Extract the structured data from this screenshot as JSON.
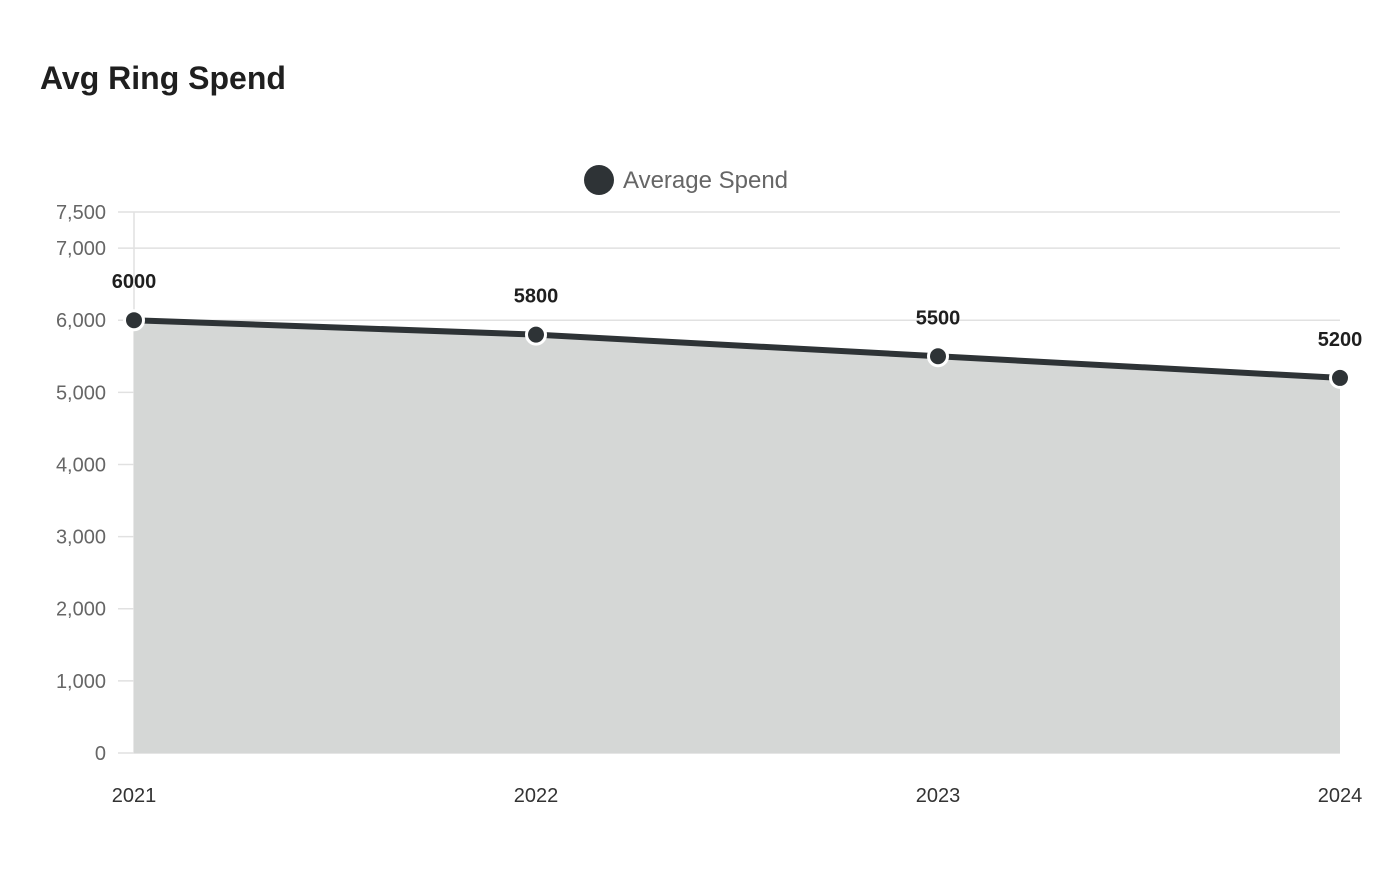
{
  "title": "Avg Ring Spend",
  "colors": {
    "series": "#2e3336",
    "fill": "#d5d7d6",
    "grid": "#e1e1e1",
    "marker_border": "#ffffff"
  },
  "chart_data": {
    "type": "area",
    "title": "Avg Ring Spend",
    "categories": [
      "2021",
      "2022",
      "2023",
      "2024"
    ],
    "series": [
      {
        "name": "Average Spend",
        "values": [
          6000,
          5800,
          5500,
          5200
        ]
      }
    ],
    "ylim": [
      0,
      7500
    ],
    "yticks": [
      0,
      1000,
      2000,
      3000,
      4000,
      5000,
      6000,
      7000,
      7500
    ],
    "ytick_labels": [
      "0",
      "1,000",
      "2,000",
      "3,000",
      "4,000",
      "5,000",
      "6,000",
      "7,000",
      "7,500"
    ],
    "data_labels": [
      "6000",
      "5800",
      "5500",
      "5200"
    ],
    "grid": true,
    "legend": "top-center"
  }
}
